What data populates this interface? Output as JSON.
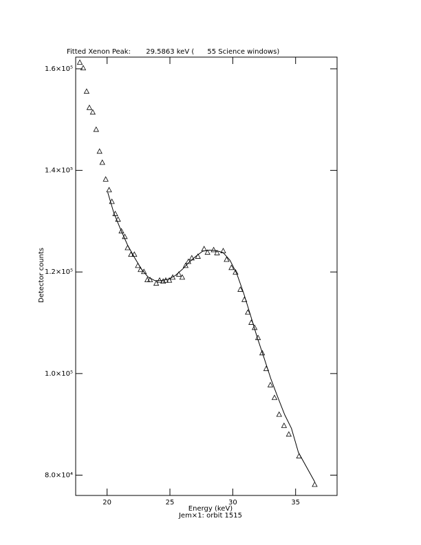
{
  "chart_data": {
    "type": "scatter",
    "title": "Fitted Xenon Peak:       29.5863 keV (      55 Science windows)",
    "x_label": "Energy (keV)",
    "subtitle": "Jem×1: orbit 1515",
    "y_label": "Detector counts",
    "xlim": [
      17.5,
      38.3
    ],
    "ylim": [
      76000,
      162300
    ],
    "xticks": [
      20,
      25,
      30,
      35
    ],
    "yticks": [
      {
        "value": 80000,
        "label": "8.0×10⁴"
      },
      {
        "value": 100000,
        "label": "1.0×10⁵"
      },
      {
        "value": 120000,
        "label": "1.2×10⁵"
      },
      {
        "value": 140000,
        "label": "1.4×10⁵"
      },
      {
        "value": 160000,
        "label": "1.6×10⁵"
      }
    ],
    "color": "#000000",
    "series": [
      {
        "marker": "triangle",
        "x": [
          17.83,
          18.1,
          18.37,
          18.59,
          18.86,
          19.13,
          19.4,
          19.62,
          19.89,
          20.16,
          20.38,
          20.65,
          20.87,
          21.14,
          21.41,
          21.63,
          21.9,
          22.17,
          22.45,
          22.66,
          22.93,
          23.2,
          23.42,
          23.91,
          24.18,
          24.46,
          24.67,
          24.95,
          25.22,
          25.71,
          25.98,
          26.25,
          26.47,
          26.74,
          27.23,
          27.72,
          27.99,
          28.48,
          28.75,
          29.24,
          29.51,
          29.89,
          30.22,
          30.6,
          30.92,
          31.2,
          31.47,
          31.74,
          32.01,
          32.34,
          32.66,
          32.99,
          33.32,
          33.69,
          34.08,
          34.46,
          35.27,
          36.52
        ],
        "values": [
          161200,
          160100,
          155500,
          152300,
          151400,
          148000,
          143700,
          141500,
          138200,
          136100,
          133800,
          131400,
          130300,
          128000,
          126900,
          124700,
          123400,
          123400,
          121200,
          120400,
          120000,
          118400,
          118400,
          117700,
          118300,
          118100,
          118300,
          118300,
          118900,
          119500,
          118900,
          121200,
          122000,
          122700,
          123000,
          124500,
          123800,
          124300,
          123700,
          124100,
          122400,
          120800,
          119900,
          116500,
          114500,
          112000,
          110000,
          109000,
          107000,
          104000,
          100900,
          97700,
          95200,
          91900,
          89700,
          88000,
          83700,
          78100
        ]
      },
      {
        "marker": "line",
        "x": [
          20.05,
          20.54,
          21.09,
          21.63,
          22.17,
          22.72,
          23.26,
          23.8,
          24.35,
          24.89,
          25.43,
          25.98,
          26.52,
          27.07,
          27.61,
          28.15,
          28.7,
          29.24,
          29.78,
          30.33,
          30.87,
          31.41,
          31.96,
          32.5,
          33.04,
          33.59,
          34.13,
          34.67,
          35.22,
          36.52
        ],
        "values": [
          135700,
          131600,
          128300,
          125300,
          122900,
          120600,
          119000,
          118300,
          118300,
          118600,
          119300,
          120500,
          121900,
          123100,
          124100,
          124300,
          124200,
          123800,
          122300,
          119600,
          115800,
          111500,
          107000,
          103000,
          98900,
          95300,
          91900,
          89200,
          84500,
          78700
        ]
      }
    ]
  }
}
